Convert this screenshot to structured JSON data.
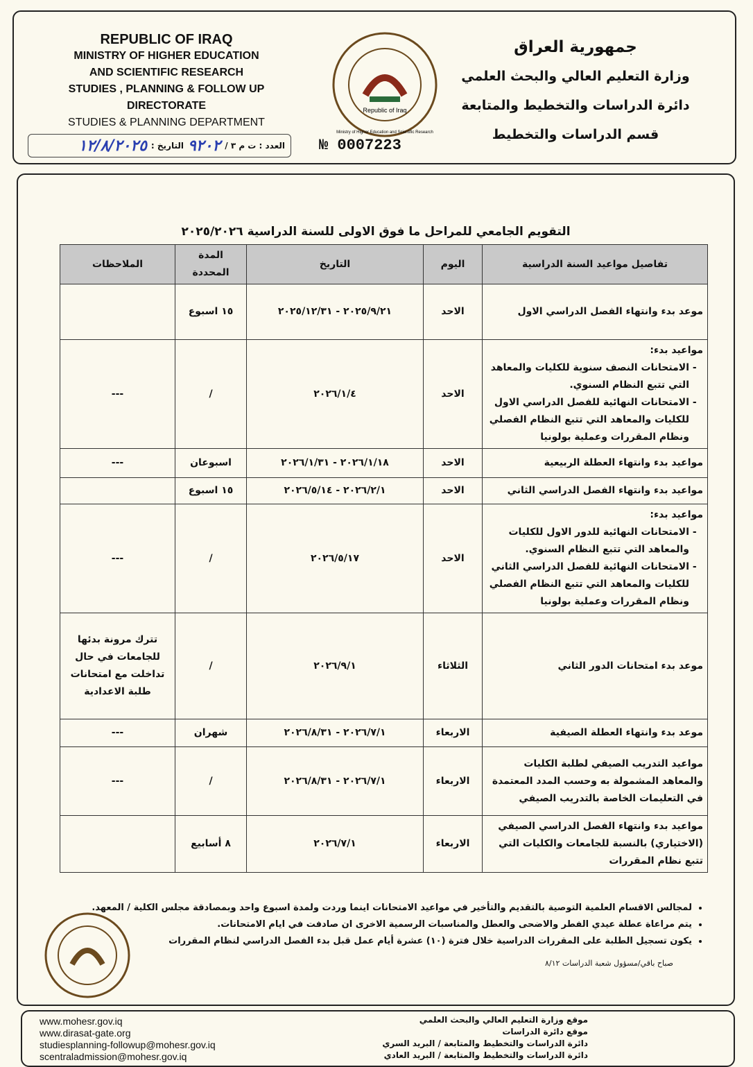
{
  "header": {
    "en_lines": [
      "REPUBLIC OF IRAQ",
      "MINISTRY OF HIGHER EDUCATION",
      "AND SCIENTIFIC RESEARCH",
      "STUDIES , PLANNING & FOLLOW UP DIRECTORATE",
      "STUDIES &  PLANNING DEPARTMENT"
    ],
    "ar_lines": [
      "جمهورية العراق",
      "وزارة التعليم العالي والبحث العلمي",
      "دائرة الدراسات والتخطيط والمتابعة",
      "قسم الدراسات والتخطيط"
    ],
    "number_label": "العدد : ت م ٣ /",
    "number": "٩٢٠٢",
    "date_label": "التاريخ :",
    "date": "١٢/٨/٢٠٢٥",
    "serial": "№  0007223",
    "logo_text": "Republic of Iraq",
    "logo_ring": "Ministry of Higher Education and Scientific Research"
  },
  "table": {
    "title": "التقويم الجامعي للمراحل ما فوق الاولى للسنة الدراسية ٢٠٢٥/٢٠٢٦",
    "headers": [
      "تفاصيل مواعيد السنة الدراسية",
      "اليوم",
      "التاريخ",
      "المدة المحددة",
      "الملاحظات"
    ],
    "rows": [
      {
        "details": "موعد بدء وانتهاء الفصل الدراسي الاول",
        "day": "الاحد",
        "date": "٢٠٢٥/٩/٢١ - ٢٠٢٥/١٢/٣١",
        "duration": "١٥ اسبوع",
        "notes": null
      },
      {
        "details": {
          "intro": "مواعيد بدء:",
          "items": [
            "الامتحانات النصف سنوية للكليات والمعاهد التي تتبع النظام السنوي.",
            "الامتحانات النهائية للفصل الدراسي الاول للكليات والمعاهد التي تتبع النظام الفصلي ونظام المقررات وعملية بولونيا"
          ]
        },
        "day": "الاحد",
        "date": "٢٠٢٦/١/٤",
        "duration": "/",
        "notes": "---"
      },
      {
        "details": "مواعيد بدء وانتهاء العطلة الربيعية",
        "day": "الاحد",
        "date": "٢٠٢٦/١/١٨ - ٢٠٢٦/١/٣١",
        "duration": "اسبوعان",
        "notes": "---"
      },
      {
        "details": "مواعيد بدء وانتهاء الفصل الدراسي الثاني",
        "day": "الاحد",
        "date": "٢٠٢٦/٢/١ - ٢٠٢٦/٥/١٤",
        "duration": "١٥ اسبوع",
        "notes": null
      },
      {
        "details": {
          "intro": "مواعيد بدء:",
          "items": [
            "الامتحانات النهائية للدور الاول للكليات والمعاهد التي تتبع النظام السنوي.",
            "الامتحانات النهائية للفصل الدراسي الثاني للكليات والمعاهد التي تتبع النظام الفصلي ونظام المقررات وعملية بولونيا"
          ]
        },
        "day": "الاحد",
        "date": "٢٠٢٦/٥/١٧",
        "duration": "/",
        "notes": "---"
      },
      {
        "details": "موعد بدء امتحانات الدور الثاني",
        "day": "الثلاثاء",
        "date": "٢٠٢٦/٩/١",
        "duration": "/",
        "notes": "تترك مرونة بدئها للجامعات في حال تداخلت مع امتحانات طلبة الاعدادية"
      },
      {
        "details": "موعد بدء وانتهاء العطلة الصيفية",
        "day": "الاربعاء",
        "date": "٢٠٢٦/٧/١ - ٢٠٢٦/٨/٣١",
        "duration": "شهران",
        "notes": "---"
      },
      {
        "details": "مواعيد التدريب الصيفي لطلبة الكليات والمعاهد المشمولة به وحسب المدد المعتمدة في التعليمات الخاصة بالتدريب الصيفي",
        "day": "الاربعاء",
        "date": "٢٠٢٦/٧/١ - ٢٠٢٦/٨/٣١",
        "duration": "/",
        "notes": "---"
      },
      {
        "details": "مواعيد بدء وانتهاء الفصل الدراسي الصيفي (الاختياري) بالنسبة للجامعات والكليات التي تتبع نظام المقررات",
        "day": "الاربعاء",
        "date": "٢٠٢٦/٧/١",
        "duration": "٨ أسابيع",
        "notes": null
      }
    ]
  },
  "notes": [
    "لمجالس الاقسام العلمية التوصية بالتقديم والتأخير في مواعيد الامتحانات اينما وردت ولمدة اسبوع واحد وبمصادقة مجلس الكلية / المعهد.",
    "يتم مراعاة عطلة عيدي الفطر والاضحى والعطل والمناسبات الرسمية الاخرى ان صادفت في ايام الامتحانات.",
    "يكون تسجيل الطلبة على المقررات الدراسية خلال فترة (١٠) عشرة أيام عمل قبل بدء الفصل الدراسي لنظام المقررات"
  ],
  "signature": "صباح باقي/مسؤول شعبة الدراسات ٨/١٢",
  "footer": {
    "left": [
      "www.mohesr.gov.iq",
      "www.dirasat-gate.org",
      "studiesplanning-followup@mohesr.gov.iq",
      "scentraladmission@mohesr.gov.iq"
    ],
    "right": [
      "موقع وزارة التعليم العالي والبحث العلمي",
      "موقع دائرة الدراسات",
      "دائرة الدراسات والتخطيط والمتابعة / البريد السري",
      "دائرة الدراسات والتخطيط والمتابعة / البريد العادي"
    ]
  }
}
